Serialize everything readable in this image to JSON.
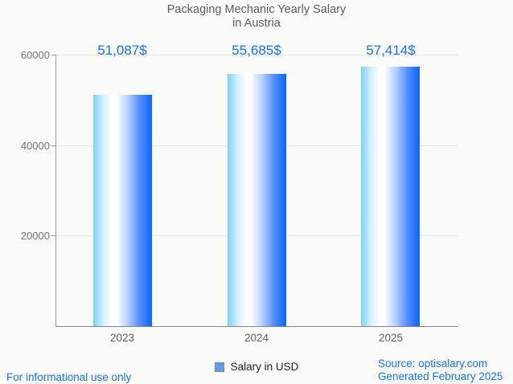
{
  "title": {
    "line1": "Packaging Mechanic Yearly Salary",
    "line2": "in Austria"
  },
  "chart_data": {
    "type": "bar",
    "categories": [
      "2023",
      "2024",
      "2025"
    ],
    "series": [
      {
        "name": "Salary in USD",
        "values": [
          51087,
          55685,
          57414
        ]
      }
    ],
    "value_labels": [
      "51,087$",
      "55,685$",
      "57,414$"
    ],
    "title": "Packaging Mechanic Yearly Salary in Austria",
    "xlabel": "",
    "ylabel": "",
    "ylim": [
      0,
      60000
    ],
    "yticks": [
      20000,
      40000,
      60000
    ],
    "ytick_labels": [
      "20000",
      "40000",
      "60000"
    ],
    "grid": true,
    "legend_position": "bottom",
    "bar_gradient": [
      "#79d2ff",
      "#ffffff",
      "#0c64ff"
    ]
  },
  "legend": {
    "label": "Salary in USD",
    "swatch_color": "#5b9ff2"
  },
  "footer": {
    "left": "For informational use only",
    "source": "Source: optisalary.com",
    "generated": "Generated February 2025"
  },
  "colors": {
    "value_label": "#1a73e8",
    "footer_text": "#1a73e8",
    "axis_label": "#757575",
    "gridline": "#e5e5e2",
    "background": "#fbfbf7"
  }
}
